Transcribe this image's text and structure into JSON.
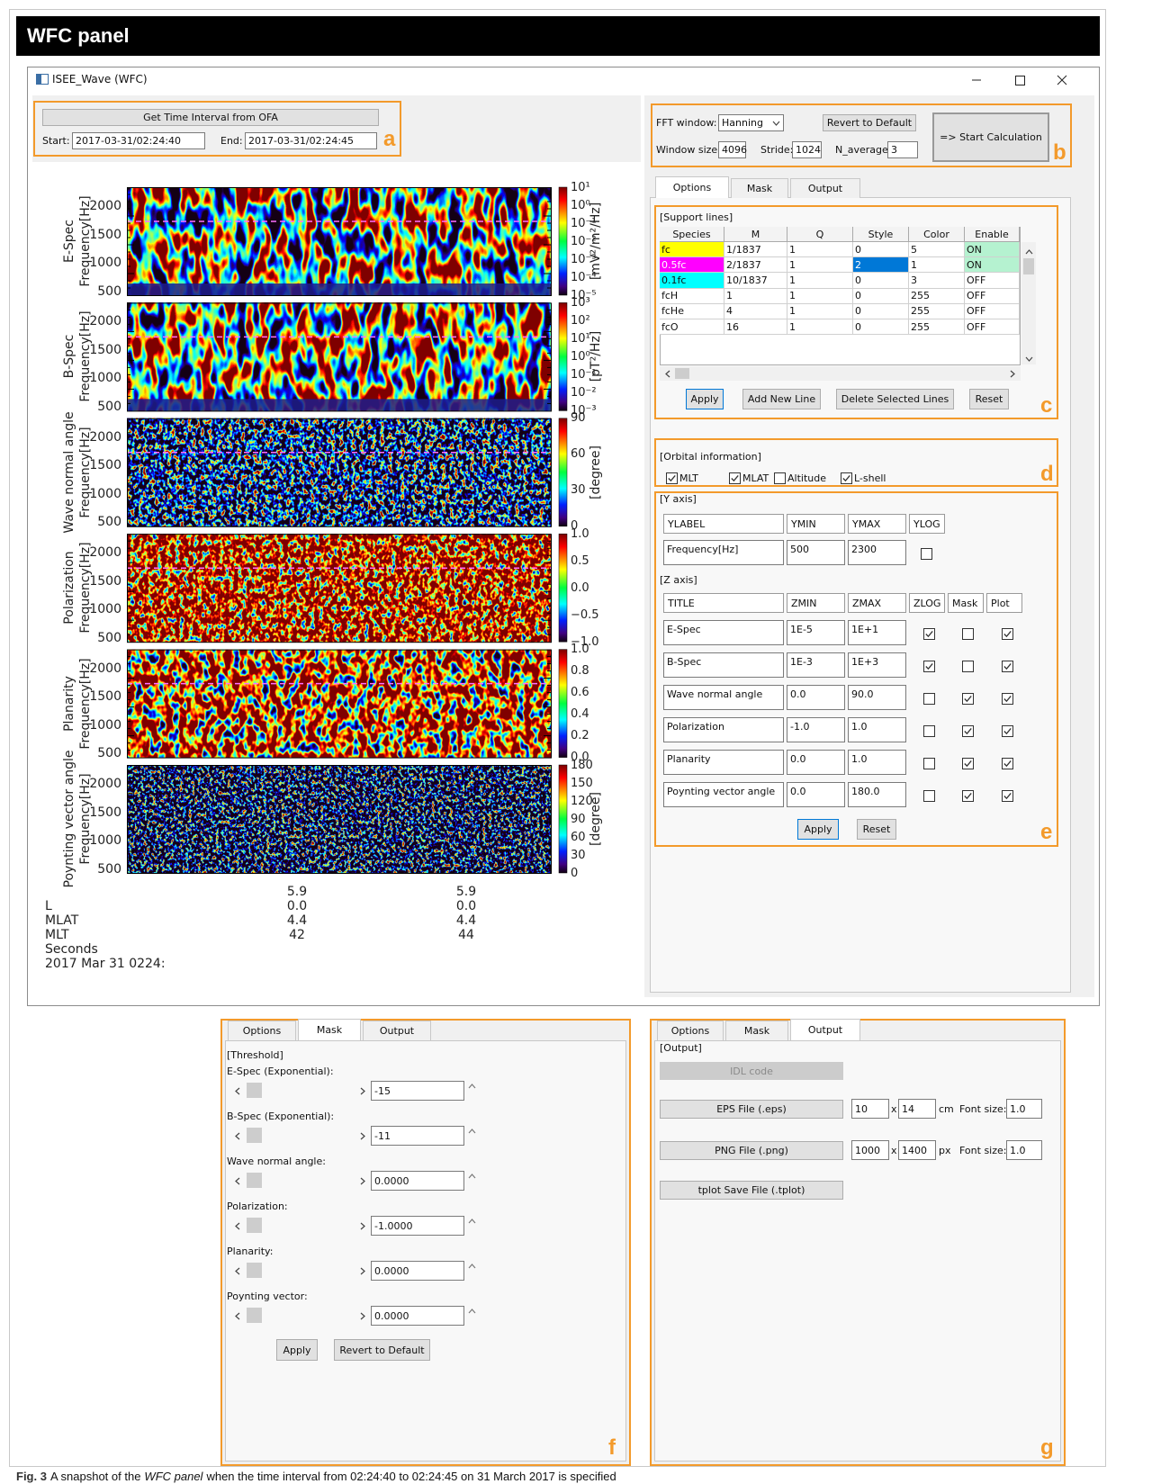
{
  "header": {
    "title": "WFC panel"
  },
  "window": {
    "title": "ISEE_Wave (WFC)"
  },
  "time_panel": {
    "button": "Get Time Interval from OFA",
    "start_label": "Start:",
    "start": "2017-03-31/02:24:40",
    "end_label": "End:",
    "end": "2017-03-31/02:24:45",
    "tag": "a"
  },
  "plots": [
    {
      "name": "E-Spec",
      "axis_label": "Frequency[Hz]",
      "yticks": [
        2000,
        1500,
        1000,
        500
      ],
      "zticks": [
        "10¹",
        "10⁰",
        "10⁻¹",
        "10⁻²",
        "10⁻³",
        "10⁻⁴",
        "10⁻⁵"
      ],
      "zlabel": "[mV²/m²/Hz]"
    },
    {
      "name": "B-Spec",
      "axis_label": "Frequency[Hz]",
      "yticks": [
        2000,
        1500,
        1000,
        500
      ],
      "zticks": [
        "10³",
        "10²",
        "10¹",
        "10⁰",
        "10⁻¹",
        "10⁻²",
        "10⁻³"
      ],
      "zlabel": "[pT²/Hz]"
    },
    {
      "name": "Wave normal angle",
      "axis_label": "Frequency[Hz]",
      "yticks": [
        2000,
        1500,
        1000,
        500
      ],
      "zticks": [
        90,
        60,
        30,
        0
      ],
      "zlabel": "[degree]"
    },
    {
      "name": "Polarization",
      "axis_label": "Frequency[Hz]",
      "yticks": [
        2000,
        1500,
        1000,
        500
      ],
      "zticks": [
        "1.0",
        "0.5",
        "0.0",
        "−0.5",
        "−1.0"
      ]
    },
    {
      "name": "Planarity",
      "axis_label": "Frequency[Hz]",
      "yticks": [
        2000,
        1500,
        1000,
        500
      ],
      "zticks": [
        "1.0",
        "0.8",
        "0.6",
        "0.4",
        "0.2",
        "0.0"
      ]
    },
    {
      "name": "Poynting vector angle",
      "axis_label": "Frequency[Hz]",
      "yticks": [
        2000,
        1500,
        1000,
        500
      ],
      "zticks": [
        180,
        150,
        120,
        90,
        60,
        30,
        0
      ],
      "zlabel": "[degree]"
    }
  ],
  "orbit": {
    "labels": [
      "L",
      "MLAT",
      "MLT",
      "Seconds",
      "2017 Mar 31 0224:"
    ],
    "columns": [
      [
        "5.9",
        "0.0",
        "4.4",
        "42"
      ],
      [
        "5.9",
        "0.0",
        "4.4",
        "44"
      ]
    ]
  },
  "fft": {
    "window_label": "FFT window:",
    "window": "Hanning",
    "revert": "Revert to Default",
    "size_label": "Window size:",
    "size": "4096",
    "stride_label": "Stride:",
    "stride": "1024",
    "navg_label": "N_average:",
    "navg": "3",
    "start": "=> Start Calculation",
    "tag": "b"
  },
  "tabs": [
    "Options",
    "Mask",
    "Output"
  ],
  "support_lines": {
    "title": "[Support lines]",
    "columns": [
      "Species",
      "M",
      "Q",
      "Style",
      "Color",
      "Enable"
    ],
    "rows": [
      [
        "fc",
        "1/1837",
        "1",
        "0",
        "5",
        "ON"
      ],
      [
        "0.5fc",
        "2/1837",
        "1",
        "2",
        "1",
        "ON"
      ],
      [
        "0.1fc",
        "10/1837",
        "1",
        "0",
        "3",
        "OFF"
      ],
      [
        "fcH",
        "1",
        "1",
        "0",
        "255",
        "OFF"
      ],
      [
        "fcHe",
        "4",
        "1",
        "0",
        "255",
        "OFF"
      ],
      [
        "fcO",
        "16",
        "1",
        "0",
        "255",
        "OFF"
      ]
    ],
    "buttons": [
      "Apply",
      "Add New Line",
      "Delete Selected Lines",
      "Reset"
    ],
    "tag": "c"
  },
  "orbital": {
    "title": "[Orbital information]",
    "options": [
      {
        "label": "MLT",
        "checked": true
      },
      {
        "label": "MLAT",
        "checked": true
      },
      {
        "label": "Altitude",
        "checked": false
      },
      {
        "label": "L-shell",
        "checked": true
      }
    ],
    "tag": "d"
  },
  "axes": {
    "y_title": "[Y axis]",
    "y_columns": [
      "YLABEL",
      "YMIN",
      "YMAX",
      "YLOG"
    ],
    "y_row": {
      "label": "Frequency[Hz]",
      "min": "500",
      "max": "2300",
      "log": false
    },
    "z_title": "[Z axis]",
    "z_columns": [
      "TITLE",
      "ZMIN",
      "ZMAX",
      "ZLOG",
      "Mask",
      "Plot"
    ],
    "z_rows": [
      {
        "title": "E-Spec",
        "min": "1E-5",
        "max": "1E+1",
        "log": true,
        "mask": false,
        "plot": true
      },
      {
        "title": "B-Spec",
        "min": "1E-3",
        "max": "1E+3",
        "log": true,
        "mask": false,
        "plot": true
      },
      {
        "title": "Wave normal angle",
        "min": "0.0",
        "max": "90.0",
        "log": false,
        "mask": true,
        "plot": true
      },
      {
        "title": "Polarization",
        "min": "-1.0",
        "max": "1.0",
        "log": false,
        "mask": true,
        "plot": true
      },
      {
        "title": "Planarity",
        "min": "0.0",
        "max": "1.0",
        "log": false,
        "mask": true,
        "plot": true
      },
      {
        "title": "Poynting vector angle",
        "min": "0.0",
        "max": "180.0",
        "log": false,
        "mask": true,
        "plot": true
      }
    ],
    "buttons": [
      "Apply",
      "Reset"
    ],
    "tag": "e"
  },
  "mask": {
    "title": "[Threshold]",
    "items": [
      {
        "label": "E-Spec (Exponential):",
        "value": "-15"
      },
      {
        "label": "B-Spec (Exponential):",
        "value": "-11"
      },
      {
        "label": "Wave normal angle:",
        "value": "0.0000"
      },
      {
        "label": "Polarization:",
        "value": "-1.0000"
      },
      {
        "label": "Planarity:",
        "value": "0.0000"
      },
      {
        "label": "Poynting vector:",
        "value": "0.0000"
      }
    ],
    "buttons": [
      "Apply",
      "Revert to Default"
    ],
    "tag": "f"
  },
  "output": {
    "title": "[Output]",
    "idl": "IDL code",
    "eps": {
      "button": "EPS File (.eps)",
      "w": "10",
      "x": "x",
      "h": "14",
      "unit": "cm",
      "font_label": "Font size:",
      "font": "1.0"
    },
    "png": {
      "button": "PNG File (.png)",
      "w": "1000",
      "x": "x",
      "h": "1400",
      "unit": "px",
      "font_label": "Font size:",
      "font": "1.0"
    },
    "tplot": "tplot Save File (.tplot)",
    "tag": "g"
  },
  "caption": {
    "label": "Fig. 3",
    "text1": "A snapshot of the",
    "italic": "WFC panel",
    "text2": "when the time interval from 02:24:40 to 02:24:45 on 31 March 2017 is specified"
  }
}
